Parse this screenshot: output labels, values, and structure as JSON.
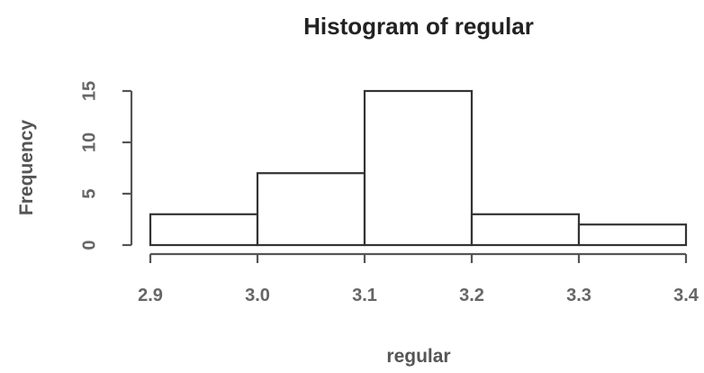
{
  "chart_data": {
    "type": "histogram",
    "title": "Histogram of regular",
    "xlabel": "regular",
    "ylabel": "Frequency",
    "bins": [
      {
        "from": 2.9,
        "to": 3.0,
        "count": 3
      },
      {
        "from": 3.0,
        "to": 3.1,
        "count": 7
      },
      {
        "from": 3.1,
        "to": 3.2,
        "count": 15
      },
      {
        "from": 3.2,
        "to": 3.3,
        "count": 3
      },
      {
        "from": 3.3,
        "to": 3.4,
        "count": 2
      }
    ],
    "x_ticks": [
      "2.9",
      "3.0",
      "3.1",
      "3.2",
      "3.3",
      "3.4"
    ],
    "y_ticks": [
      "0",
      "5",
      "10",
      "15"
    ],
    "xlim": [
      2.9,
      3.4
    ],
    "ylim": [
      0,
      15
    ],
    "grid": false
  }
}
